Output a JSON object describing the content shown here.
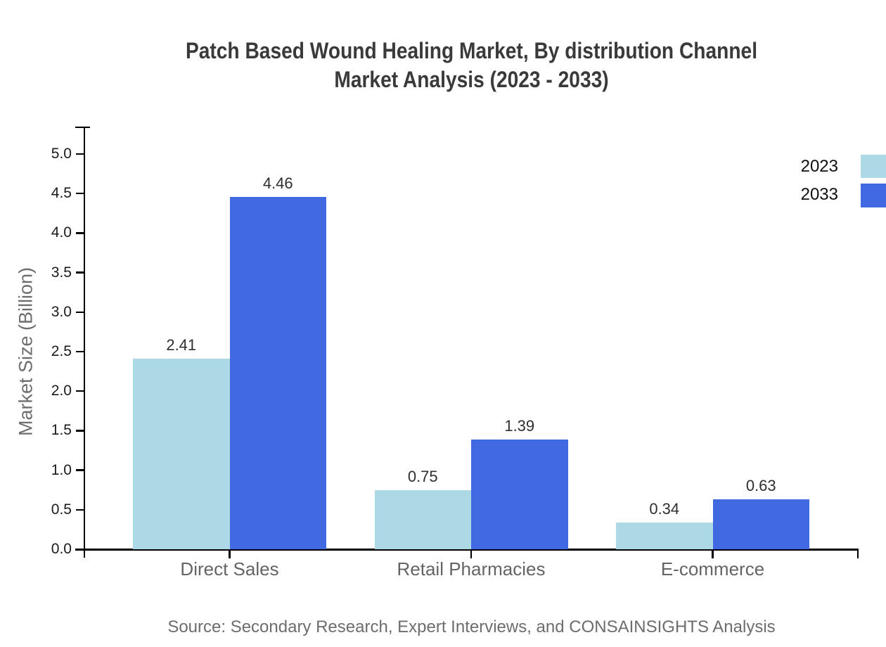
{
  "chart": {
    "title_line1": "Patch Based Wound Healing Market, By distribution Channel",
    "title_line2": "Market Analysis (2023 - 2033)",
    "source": "Source: Secondary Research, Expert Interviews, and CONSAINSIGHTS Analysis"
  },
  "chart_data": {
    "type": "bar",
    "title": "Patch Based Wound Healing Market, By distribution Channel Market Analysis (2023 - 2033)",
    "categories": [
      "Direct Sales",
      "Retail Pharmacies",
      "E-commerce"
    ],
    "series": [
      {
        "name": "2023",
        "color": "#ADD8E6",
        "values": [
          2.41,
          0.75,
          0.34
        ]
      },
      {
        "name": "2033",
        "color": "#4169E1",
        "values": [
          4.46,
          1.39,
          0.63
        ]
      }
    ],
    "xlabel": "",
    "ylabel": "Market Size (Billion)",
    "ylim": [
      0,
      5.0
    ],
    "ytick_step": 0.5,
    "yticks": [
      "0.0",
      "0.5",
      "1.0",
      "1.5",
      "2.0",
      "2.5",
      "3.0",
      "3.5",
      "4.0",
      "4.5",
      "5.0"
    ],
    "grid": false,
    "legend_position": "top-right",
    "value_labels": true,
    "source": "Source: Secondary Research, Expert Interviews, and CONSAINSIGHTS Analysis"
  }
}
